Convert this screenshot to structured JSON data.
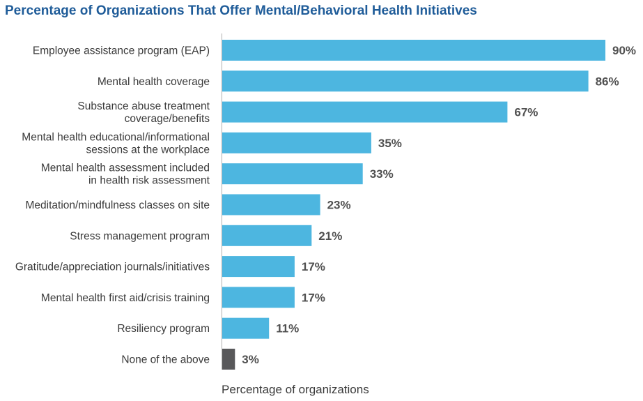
{
  "chart_data": {
    "type": "bar",
    "orientation": "horizontal",
    "title": "Percentage of Organizations That Offer Mental/Behavioral Health Initiatives",
    "xlabel": "Percentage of organizations",
    "ylabel": "",
    "xlim": [
      0,
      90
    ],
    "grid": false,
    "categories": [
      [
        "Employee assistance program (EAP)"
      ],
      [
        "Mental health coverage"
      ],
      [
        "Substance abuse treatment",
        "coverage/benefits"
      ],
      [
        "Mental health educational/informational",
        "sessions at the workplace"
      ],
      [
        "Mental health assessment included",
        "in health risk assessment"
      ],
      [
        "Meditation/mindfulness classes on site"
      ],
      [
        "Stress management program"
      ],
      [
        "Gratitude/appreciation journals/initiatives"
      ],
      [
        "Mental health first aid/crisis training"
      ],
      [
        "Resiliency program"
      ],
      [
        "None of the above"
      ]
    ],
    "values": [
      90,
      86,
      67,
      35,
      33,
      23,
      21,
      17,
      17,
      11,
      3
    ],
    "value_labels": [
      "90%",
      "86%",
      "67%",
      "35%",
      "33%",
      "23%",
      "21%",
      "17%",
      "17%",
      "11%",
      "3%"
    ],
    "bar_colors": [
      "#4db6e0",
      "#4db6e0",
      "#4db6e0",
      "#4db6e0",
      "#4db6e0",
      "#4db6e0",
      "#4db6e0",
      "#4db6e0",
      "#4db6e0",
      "#4db6e0",
      "#58585a"
    ]
  },
  "colors": {
    "title": "#1f5c99",
    "label": "#3a3a3a",
    "value": "#505050",
    "axis": "#b0b0b0"
  }
}
